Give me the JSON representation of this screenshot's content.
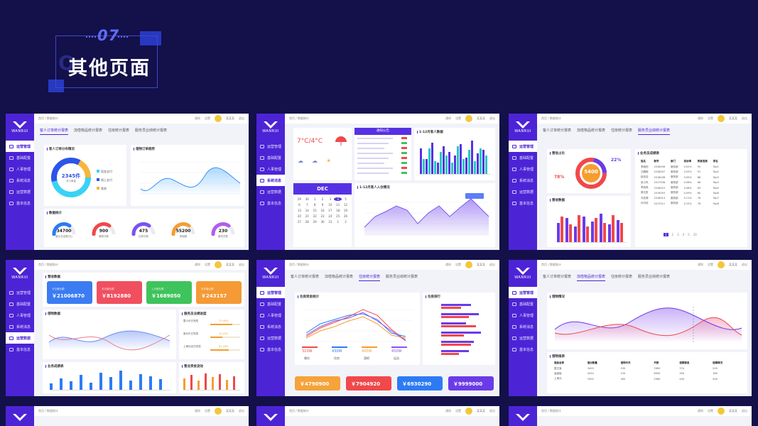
{
  "header": {
    "number": "07",
    "title": "其他页面",
    "ghost": "Q"
  },
  "common": {
    "brand": "WANRUI",
    "user": "某某某",
    "notice": "通知",
    "setting": "设置",
    "exit": "退出"
  },
  "p1": {
    "breadcrumb": "首页 / 数据统计",
    "menu": [
      "运营管理",
      "基础配置",
      "人事管理",
      "系统消息",
      "运营数据",
      "基本信息"
    ],
    "tabs": [
      "客人订单统计报表",
      "加借物品统计报表",
      "住房统计报表",
      "服务员业绩统计报表"
    ],
    "donut_title": "客人订单分布情况",
    "donut_value": "2345件",
    "donut_sub": "总订单量",
    "donut_legend": [
      {
        "label": "现金支付",
        "color": "#3ad2f5"
      },
      {
        "label": "线上支付",
        "color": "#2d54e8"
      },
      {
        "label": "其他",
        "color": "#f6b63c"
      }
    ],
    "line_title": "借物订单趋势",
    "stats_title": "数据统计",
    "rings": [
      {
        "value": "34700",
        "label": "营业总金额(元)",
        "color": "#2d7bf4"
      },
      {
        "value": "900",
        "label": "借物次数",
        "color": "#f0484b"
      },
      {
        "value": "475",
        "label": "住房次数",
        "color": "#7a52f4"
      },
      {
        "value": "55200",
        "label": "房租额",
        "color": "#f59e30"
      },
      {
        "value": "230",
        "label": "服务员数",
        "color": "#b15cf0"
      }
    ]
  },
  "p2": {
    "breadcrumb": "首页 / 数据统计",
    "menu": [
      "运营管理",
      "基础配置",
      "人事管理",
      "系统消息",
      "运营数据",
      "基本信息"
    ],
    "weather_temp": "7°C/4°C",
    "notice_title": "通知公告",
    "bar_title": "1-12月客人数据",
    "month": "DEC",
    "area_title": "1-12月客人入住情况",
    "calendar": [
      "29",
      "30",
      "1",
      "2",
      "3",
      "4",
      "5",
      "6",
      "7",
      "8",
      "9",
      "10",
      "11",
      "12",
      "13",
      "14",
      "15",
      "16",
      "17",
      "18",
      "19",
      "20",
      "21",
      "22",
      "23",
      "24",
      "25",
      "26",
      "27",
      "28",
      "29",
      "30",
      "31",
      "1",
      "2"
    ],
    "cal_today": "4"
  },
  "p3": {
    "breadcrumb": "首页 / 数据统计",
    "menu": [
      "运营管理",
      "基础配置",
      "人事管理",
      "系统消息",
      "运营数据",
      "基本信息"
    ],
    "tabs": [
      "客人订单统计报表",
      "加借物品统计报表",
      "住房统计报表",
      "服务员业绩统计报表"
    ],
    "gauge_title": "营收占比",
    "gauge_value": "5400",
    "gauge_pct1": "22%",
    "gauge_pct2": "78%",
    "table_title": "业务员成绩表",
    "table_head": [
      "姓名",
      "账号",
      "部门",
      "投诉率",
      "恢复成绩",
      "排名"
    ],
    "table_rows": [
      [
        "李朋田",
        "2018006",
        "服务部",
        "0.02%",
        "95",
        "Top1"
      ],
      [
        "王鹏程",
        "2018007",
        "服务部",
        "0.03%",
        "91",
        "Top2"
      ],
      [
        "赵佳佳",
        "2018008",
        "服务部",
        "0.05%",
        "88",
        "Top3"
      ],
      [
        "张小杰",
        "2017006",
        "服务部",
        "0.06%",
        "86",
        "Top4"
      ],
      [
        "李晓鸣",
        "2018023",
        "服务部",
        "0.08%",
        "83",
        "Top5"
      ],
      [
        "周达哲",
        "2019003",
        "服务部",
        "0.09%",
        "80",
        "Top6"
      ],
      [
        "刘志娟",
        "2018014",
        "服务部",
        "0.11%",
        "78",
        "Top7"
      ],
      [
        "孙可欣",
        "2017011",
        "服务部",
        "0.12%",
        "76",
        "Top8"
      ]
    ],
    "bar_title": "营收数据"
  },
  "p4": {
    "breadcrumb": "首页 / 数据统计",
    "menu": [
      "运营管理",
      "基础配置",
      "人事管理",
      "系统消息",
      "运营数据",
      "基本信息"
    ],
    "kpi_title": "营收数据",
    "kpis": [
      {
        "label": "今日营业额",
        "value": "￥21006870",
        "color": "#3b7cf2"
      },
      {
        "label": "本月营业额",
        "value": "￥8192880",
        "color": "#f04f5f"
      },
      {
        "label": "上月营业额",
        "value": "￥1689050",
        "color": "#3fc35c"
      },
      {
        "label": "去年营业额",
        "value": "￥243157",
        "color": "#f59a35"
      }
    ],
    "wave_title": "借物数据",
    "progress_title": "服务员业绩进度",
    "progress": [
      {
        "label": "童小月已完成",
        "pct": "73,49%",
        "color": "#f0a030"
      },
      {
        "label": "吴乐乐已完成",
        "pct": "41,20%",
        "color": "#f0a030"
      },
      {
        "label": "上海分店已完成",
        "pct": "61,20%",
        "color": "#f0a030"
      }
    ],
    "bar_title": "业务成绩表",
    "bar2_title": "营业资金流动"
  },
  "p5": {
    "breadcrumb": "首页 / 数据统计",
    "menu": [
      "运营管理",
      "基础配置",
      "人事管理",
      "系统消息",
      "运营数据",
      "基本信息"
    ],
    "tabs": [
      "客人订单统计报表",
      "加借物品统计报表",
      "住房统计报表",
      "服务员业绩统计报表"
    ],
    "line_title": "住房资金统计",
    "hbar_title": "住房排行",
    "cats": [
      {
        "value": "310W",
        "label": "餐饮",
        "color": "#f0484b"
      },
      {
        "value": "430W",
        "label": "住房",
        "color": "#2d7bf4"
      },
      {
        "value": "400W",
        "label": "酒吧",
        "color": "#f59e30"
      },
      {
        "value": "450W",
        "label": "运动",
        "color": "#8a55f0"
      }
    ],
    "kpis": [
      {
        "value": "￥4790900",
        "color": "#f5a33a"
      },
      {
        "value": "￥7904920",
        "color": "#f0484b"
      },
      {
        "value": "￥6930290",
        "color": "#2d7bf4"
      },
      {
        "value": "￥9999000",
        "color": "#6a3be8"
      }
    ]
  },
  "p6": {
    "breadcrumb": "首页 / 数据统计",
    "menu": [
      "运营管理",
      "基础配置",
      "人事管理",
      "系统消息",
      "运营数据",
      "基本信息"
    ],
    "tabs": [
      "客人订单统计报表",
      "加借物品统计报表",
      "住房统计报表",
      "服务员业绩统计报表"
    ],
    "chart_title": "借物情况",
    "table_title": "借物报表",
    "table_head": [
      "借品名称",
      "借出数量",
      "借物中天",
      "天数",
      "借期营收",
      "借期情况"
    ],
    "table_rows": [
      [
        "童文宝",
        "3400",
        "230",
        "7890",
        "374",
        "205"
      ],
      [
        "高酒保",
        "2030",
        "220",
        "6900",
        "300",
        "180"
      ],
      [
        "上海元",
        "2300",
        "400",
        "2980",
        "400",
        "400"
      ]
    ]
  },
  "p7": {
    "breadcrumb": "首页 / 数据统计"
  },
  "p8": {
    "breadcrumb": "首页 / 数据统计"
  },
  "p9": {
    "breadcrumb": "首页 / 数据统计"
  }
}
